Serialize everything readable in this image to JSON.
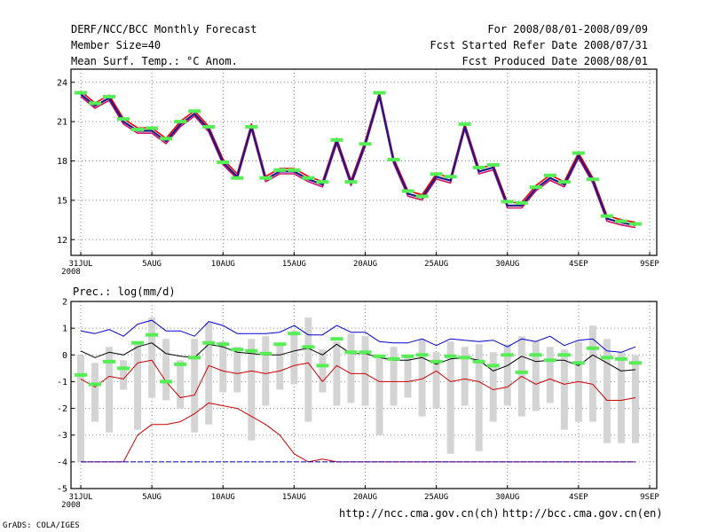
{
  "header": {
    "title": "DERF/NCC/BCC Monthly Forecast",
    "member_size": "Member Size=40",
    "variable": "Mean Surf. Temp.: °C Anom.",
    "period": "For 2008/08/01-2008/09/09",
    "start_ref": "Fcst Started Refer Date 2008/07/31",
    "produced": "Fcst Produced Date 2008/08/01"
  },
  "footer": {
    "url_ch": "http://ncc.cma.gov.cn(ch)",
    "url_en": "http://bcc.cma.gov.cn(en)",
    "credit": "GrADS: COLA/IGES"
  },
  "colors": {
    "temp_line": "#1a1a8c",
    "ensemble_max": "#0000cc",
    "ensemble_min": "#cc0000",
    "median": "#000000",
    "marker": "#55ee55",
    "box": "#d4d4d4"
  },
  "chart_data": [
    {
      "type": "line",
      "title": "Mean Surf. Temp.: °C Anom.",
      "xlabel": "",
      "ylabel": "",
      "x_tick_labels": [
        "31JUL",
        "5AUG",
        "10AUG",
        "15AUG",
        "20AUG",
        "25AUG",
        "30AUG",
        "4SEP",
        "9SEP"
      ],
      "x_year_label": "2008",
      "ylim": [
        10.8,
        25
      ],
      "y_ticks": [
        12,
        15,
        18,
        21,
        24
      ],
      "grid": true,
      "series": [
        {
          "name": "forecast",
          "values": [
            23.1,
            22.2,
            22.8,
            21.0,
            20.3,
            20.3,
            19.5,
            20.8,
            21.6,
            20.4,
            17.9,
            16.8,
            20.6,
            16.6,
            17.2,
            17.2,
            16.6,
            16.2,
            19.5,
            16.3,
            19.3,
            23.0,
            18.0,
            15.5,
            15.2,
            16.8,
            16.5,
            20.6,
            17.2,
            17.5,
            14.6,
            14.6,
            15.9,
            16.7,
            16.2,
            18.4,
            16.5,
            13.6,
            13.3,
            13.1
          ]
        },
        {
          "name": "markers",
          "values": [
            23.2,
            22.4,
            22.9,
            21.2,
            20.4,
            20.5,
            19.7,
            21.0,
            21.8,
            20.6,
            17.9,
            16.7,
            20.6,
            16.7,
            17.3,
            17.3,
            16.7,
            16.4,
            19.6,
            16.4,
            19.3,
            23.2,
            18.1,
            15.7,
            15.3,
            17.0,
            16.8,
            20.8,
            17.5,
            17.7,
            14.9,
            14.8,
            16.0,
            16.9,
            16.4,
            18.6,
            16.6,
            13.8,
            13.4,
            13.2
          ]
        }
      ]
    },
    {
      "type": "box",
      "title": "Prec.: log(mm/d)",
      "xlabel": "",
      "ylabel": "",
      "x_tick_labels": [
        "31JUL",
        "5AUG",
        "10AUG",
        "15AUG",
        "20AUG",
        "25AUG",
        "30AUG",
        "4SEP",
        "9SEP"
      ],
      "x_year_label": "2008",
      "ylim": [
        -5,
        2
      ],
      "y_ticks": [
        -5,
        -4,
        -3,
        -2,
        -1,
        0,
        1,
        2
      ],
      "grid": true,
      "series": [
        {
          "name": "ensemble max",
          "values": [
            0.9,
            0.8,
            0.95,
            0.7,
            1.15,
            1.3,
            0.9,
            0.9,
            0.7,
            1.25,
            1.1,
            0.8,
            0.8,
            0.8,
            0.85,
            1.1,
            0.75,
            0.75,
            1.1,
            0.85,
            0.85,
            0.5,
            0.45,
            0.45,
            0.6,
            0.35,
            0.6,
            0.55,
            0.5,
            0.55,
            0.3,
            0.6,
            0.5,
            0.7,
            0.35,
            0.55,
            0.6,
            0.15,
            0.1,
            0.3
          ]
        },
        {
          "name": "median",
          "values": [
            0.15,
            -0.1,
            0.1,
            0.0,
            0.3,
            0.45,
            0.05,
            -0.05,
            -0.1,
            0.4,
            0.3,
            0.1,
            0.05,
            0.0,
            0.0,
            0.15,
            0.25,
            0.0,
            0.4,
            0.05,
            0.05,
            -0.1,
            -0.2,
            -0.2,
            -0.1,
            -0.35,
            -0.15,
            -0.1,
            -0.2,
            -0.6,
            -0.4,
            -0.05,
            -0.25,
            -0.2,
            -0.2,
            -0.4,
            0.0,
            -0.3,
            -0.6,
            -0.55
          ]
        },
        {
          "name": "ensemble low",
          "values": [
            -0.9,
            -1.2,
            -0.8,
            -0.9,
            -0.3,
            -0.2,
            -1.0,
            -1.6,
            -1.5,
            -0.4,
            -0.6,
            -0.7,
            -0.6,
            -0.7,
            -0.6,
            -0.4,
            -0.3,
            -1.0,
            -0.4,
            -0.7,
            -0.7,
            -1.0,
            -1.0,
            -1.0,
            -0.9,
            -0.6,
            -1.0,
            -0.9,
            -1.0,
            -1.3,
            -1.2,
            -0.8,
            -1.1,
            -0.9,
            -1.1,
            -1.0,
            -1.1,
            -1.7,
            -1.7,
            -1.6
          ]
        },
        {
          "name": "ensemble min",
          "values": [
            -4.0,
            -4.0,
            -4.0,
            -4.0,
            -3.0,
            -2.6,
            -2.6,
            -2.5,
            -2.2,
            -1.8,
            -1.9,
            -2.0,
            -2.3,
            -2.6,
            -3.0,
            -3.7,
            -4.0,
            -3.9,
            -4.0,
            -4.0,
            -4.0,
            -4.0,
            -4.0,
            -4.0,
            -4.0,
            -4.0,
            -4.0,
            -4.0,
            -4.0,
            -4.0,
            -4.0,
            -4.0,
            -4.0,
            -4.0,
            -4.0,
            -4.0,
            -4.0,
            -4.0,
            -4.0,
            -4.0
          ]
        },
        {
          "name": "box top",
          "values": [
            0.0,
            -0.3,
            0.3,
            -0.2,
            0.4,
            1.4,
            0.6,
            -0.2,
            0.6,
            1.2,
            0.5,
            0.3,
            0.6,
            0.7,
            0.4,
            0.9,
            1.4,
            0.2,
            0.5,
            0.8,
            0.7,
            0.0,
            0.3,
            0.0,
            0.6,
            0.1,
            0.5,
            0.3,
            0.4,
            0.1,
            0.4,
            0.7,
            0.5,
            0.3,
            0.2,
            0.5,
            1.1,
            0.6,
            0.1,
            0.0
          ]
        },
        {
          "name": "box bottom",
          "values": [
            -4.0,
            -2.5,
            -2.9,
            -1.3,
            -2.8,
            -1.6,
            -1.7,
            -2.0,
            -2.9,
            -2.6,
            -1.4,
            -1.4,
            -3.2,
            -1.9,
            -1.3,
            -1.1,
            -2.5,
            -1.4,
            -1.9,
            -1.8,
            -1.9,
            -3.0,
            -1.9,
            -1.6,
            -2.3,
            -2.0,
            -3.7,
            -1.9,
            -3.6,
            -2.5,
            -1.9,
            -2.3,
            -2.1,
            -1.8,
            -2.8,
            -2.5,
            -2.5,
            -3.3,
            -3.3,
            -3.3
          ]
        },
        {
          "name": "markers",
          "values": [
            -0.75,
            -1.1,
            -0.25,
            -0.5,
            0.45,
            0.75,
            -1.0,
            -0.35,
            -0.1,
            0.45,
            0.4,
            0.2,
            0.15,
            0.05,
            0.4,
            0.8,
            0.3,
            -0.4,
            0.6,
            0.1,
            0.1,
            -0.05,
            -0.15,
            -0.05,
            0.0,
            -0.25,
            -0.05,
            -0.1,
            -0.25,
            -0.4,
            0.0,
            -0.65,
            0.0,
            -0.2,
            0.0,
            -0.3,
            0.25,
            -0.1,
            -0.15,
            -0.3
          ]
        }
      ]
    }
  ]
}
